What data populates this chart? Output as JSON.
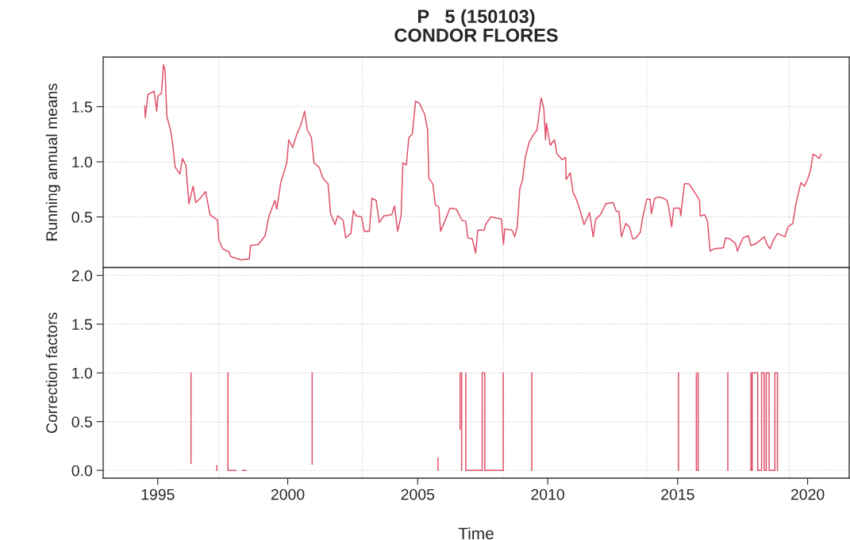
{
  "chart_data": [
    {
      "type": "line",
      "title": "P   5 (150103)",
      "subtitle": "CONDOR FLORES",
      "ylabel": "Running annual means",
      "xlim": [
        1992.9,
        2021.6
      ],
      "ylim": [
        0.04,
        1.95
      ],
      "yticks": [
        {
          "value": 0.5,
          "label": "0.5"
        },
        {
          "value": 1,
          "label": "1.0"
        },
        {
          "value": 1.5,
          "label": "1.5"
        }
      ],
      "tick_labels": "y",
      "grid": "y",
      "ref_lines": [
        {
          "axis": "x",
          "value": 1997.35,
          "color": "#d3d3d3",
          "line_style": "dotted"
        },
        {
          "axis": "x",
          "value": 2002.87,
          "color": "#d3d3d3",
          "line_style": "dotted"
        },
        {
          "axis": "x",
          "value": 2008.3,
          "color": "#d3d3d3",
          "line_style": "dotted"
        },
        {
          "axis": "x",
          "value": 2013.8,
          "color": "#d3d3d3",
          "line_style": "dotted"
        },
        {
          "axis": "x",
          "value": 2019.3,
          "color": "#d3d3d3",
          "line_style": "dotted"
        }
      ],
      "series": [
        {
          "color": "#df536b",
          "x": [
            1994.5,
            1994.52,
            1994.62,
            1994.86,
            1994.96,
            1995.01,
            1995.14,
            1995.22,
            1995.28,
            1995.35,
            1995.49,
            1995.57,
            1995.67,
            1995.85,
            1995.95,
            1996.08,
            1996.2,
            1996.36,
            1996.46,
            1996.64,
            1996.84,
            1997.01,
            1997.3,
            1997.35,
            1997.5,
            1997.75,
            1997.8,
            1998.21,
            1998.52,
            1998.57,
            1998.87,
            1999.13,
            1999.28,
            1999.51,
            1999.58,
            1999.73,
            1999.96,
            2000.04,
            2000.19,
            2000.35,
            2000.5,
            2000.65,
            2000.75,
            2000.91,
            2001.01,
            2001.21,
            2001.36,
            2001.55,
            2001.65,
            2001.82,
            2001.92,
            2002.13,
            2002.23,
            2002.43,
            2002.53,
            2002.63,
            2002.84,
            2002.94,
            2003.14,
            2003.24,
            2003.4,
            2003.52,
            2003.7,
            2004.0,
            2004.11,
            2004.23,
            2004.36,
            2004.43,
            2004.56,
            2004.66,
            2004.79,
            2004.92,
            2005.07,
            2005.27,
            2005.38,
            2005.43,
            2005.58,
            2005.68,
            2005.81,
            2005.88,
            2006.04,
            2006.24,
            2006.49,
            2006.7,
            2006.85,
            2006.93,
            2007.1,
            2007.23,
            2007.31,
            2007.56,
            2007.61,
            2007.81,
            2008.22,
            2008.3,
            2008.35,
            2008.63,
            2008.73,
            2008.83,
            2008.93,
            2009.03,
            2009.14,
            2009.29,
            2009.44,
            2009.59,
            2009.75,
            2009.85,
            2009.92,
            2009.95,
            2010.1,
            2010.26,
            2010.36,
            2010.56,
            2010.69,
            2010.71,
            2010.87,
            2010.97,
            2011.12,
            2011.27,
            2011.4,
            2011.61,
            2011.75,
            2011.85,
            2012.03,
            2012.24,
            2012.52,
            2012.64,
            2012.74,
            2012.84,
            2013.0,
            2013.15,
            2013.27,
            2013.4,
            2013.56,
            2013.66,
            2013.81,
            2013.94,
            2013.99,
            2014.12,
            2014.27,
            2014.45,
            2014.59,
            2014.66,
            2014.77,
            2014.85,
            2015.08,
            2015.12,
            2015.26,
            2015.43,
            2015.58,
            2015.74,
            2015.84,
            2015.87,
            2016.04,
            2016.15,
            2016.25,
            2016.4,
            2016.76,
            2016.84,
            2017.01,
            2017.22,
            2017.3,
            2017.4,
            2017.52,
            2017.72,
            2017.82,
            2018.03,
            2018.33,
            2018.44,
            2018.56,
            2018.66,
            2018.84,
            2019.13,
            2019.25,
            2019.43,
            2019.55,
            2019.74,
            2019.88,
            2019.98,
            2020.11,
            2020.21,
            2020.34,
            2020.45,
            2020.52
          ],
          "values": [
            1.51,
            1.4,
            1.61,
            1.64,
            1.46,
            1.6,
            1.62,
            1.88,
            1.83,
            1.41,
            1.29,
            1.17,
            0.95,
            0.89,
            1.03,
            0.97,
            0.62,
            0.78,
            0.63,
            0.67,
            0.73,
            0.52,
            0.47,
            0.29,
            0.21,
            0.18,
            0.14,
            0.11,
            0.12,
            0.24,
            0.25,
            0.33,
            0.51,
            0.65,
            0.57,
            0.81,
            0.99,
            1.2,
            1.13,
            1.25,
            1.33,
            1.46,
            1.29,
            1.22,
            0.99,
            0.95,
            0.85,
            0.8,
            0.53,
            0.43,
            0.51,
            0.47,
            0.31,
            0.35,
            0.56,
            0.51,
            0.5,
            0.37,
            0.37,
            0.67,
            0.65,
            0.45,
            0.51,
            0.52,
            0.6,
            0.37,
            0.51,
            0.99,
            0.97,
            1.22,
            1.25,
            1.55,
            1.53,
            1.43,
            1.29,
            0.85,
            0.8,
            0.61,
            0.59,
            0.37,
            0.46,
            0.58,
            0.57,
            0.47,
            0.46,
            0.31,
            0.3,
            0.17,
            0.38,
            0.38,
            0.43,
            0.5,
            0.48,
            0.25,
            0.39,
            0.38,
            0.32,
            0.41,
            0.76,
            0.83,
            1.04,
            1.18,
            1.24,
            1.29,
            1.58,
            1.49,
            1.2,
            1.35,
            1.15,
            1.2,
            1.07,
            1.02,
            1.04,
            0.84,
            0.9,
            0.73,
            0.65,
            0.54,
            0.43,
            0.54,
            0.32,
            0.48,
            0.52,
            0.62,
            0.63,
            0.55,
            0.55,
            0.32,
            0.44,
            0.41,
            0.3,
            0.31,
            0.36,
            0.5,
            0.66,
            0.66,
            0.53,
            0.67,
            0.68,
            0.67,
            0.65,
            0.58,
            0.41,
            0.58,
            0.58,
            0.51,
            0.8,
            0.8,
            0.75,
            0.69,
            0.65,
            0.51,
            0.52,
            0.46,
            0.19,
            0.21,
            0.22,
            0.31,
            0.3,
            0.26,
            0.19,
            0.25,
            0.31,
            0.33,
            0.24,
            0.26,
            0.32,
            0.25,
            0.21,
            0.28,
            0.35,
            0.32,
            0.41,
            0.44,
            0.62,
            0.81,
            0.78,
            0.83,
            0.92,
            1.07,
            1.05,
            1.03,
            1.07
          ]
        }
      ]
    },
    {
      "type": "line",
      "xlabel": "Time",
      "ylabel": "Correction factors",
      "xlim": [
        1992.9,
        2021.6
      ],
      "ylim": [
        -0.08,
        2.08
      ],
      "xticks": [
        1995,
        2000,
        2005,
        2010,
        2015,
        2020
      ],
      "yticks": [
        {
          "value": 0,
          "label": "0.0"
        },
        {
          "value": 0.5,
          "label": "0.5"
        },
        {
          "value": 1,
          "label": "1.0"
        },
        {
          "value": 1.5,
          "label": "1.5"
        },
        {
          "value": 2,
          "label": "2.0"
        }
      ],
      "grid": "y",
      "ref_lines": [
        {
          "axis": "x",
          "value": 1997.35,
          "color": "#d3d3d3",
          "line_style": "dotted"
        },
        {
          "axis": "x",
          "value": 2002.87,
          "color": "#d3d3d3",
          "line_style": "dotted"
        },
        {
          "axis": "x",
          "value": 2008.3,
          "color": "#d3d3d3",
          "line_style": "dotted"
        },
        {
          "axis": "x",
          "value": 2013.8,
          "color": "#d3d3d3",
          "line_style": "dotted"
        },
        {
          "axis": "x",
          "value": 2019.3,
          "color": "#d3d3d3",
          "line_style": "dotted"
        }
      ],
      "series": [
        {
          "color": "#df536b",
          "x": [
            1996.28,
            1996.28,
            1996.29,
            1997.27,
            1997.27,
            1997.28,
            1997.7,
            1997.7,
            1998.01,
            1998.02,
            1998.26,
            1998.41,
            1998.42,
            2000.94,
            2000.94,
            2000.95,
            2005.78,
            2005.78,
            2005.79,
            2006.63,
            2006.63,
            2006.66,
            2006.69,
            2006.69,
            2006.7,
            2006.85,
            2006.85,
            2007.48,
            2007.48,
            2007.58,
            2007.58,
            2008.29,
            2008.29,
            2008.3,
            2009.39,
            2009.39,
            2009.4,
            2015.03,
            2015.03,
            2015.04,
            2015.72,
            2015.72,
            2015.79,
            2015.79,
            2015.8,
            2016.93,
            2016.93,
            2016.94,
            2017.82,
            2017.82,
            2017.87,
            2017.87,
            2018.08,
            2018.08,
            2018.23,
            2018.23,
            2018.33,
            2018.33,
            2018.41,
            2018.41,
            2018.52,
            2018.52,
            2018.74,
            2018.74,
            2018.84,
            2018.84
          ],
          "values": [
            1.0,
            0.07,
            null,
            0.05,
            0.0,
            null,
            1.0,
            0.0,
            0.0,
            null,
            0.0,
            0.0,
            null,
            1.0,
            0.06,
            null,
            0.13,
            0.0,
            null,
            1.0,
            0.42,
            null,
            1.0,
            0.0,
            null,
            1.0,
            0.0,
            0.0,
            1.0,
            1.0,
            0.0,
            0.0,
            1.0,
            null,
            1.0,
            0.0,
            null,
            1.0,
            0.0,
            null,
            1.0,
            0.0,
            0.0,
            1.0,
            null,
            1.0,
            0.0,
            null,
            1.0,
            0.0,
            0.0,
            1.0,
            1.0,
            0.0,
            0.0,
            1.0,
            1.0,
            0.0,
            0.0,
            1.0,
            1.0,
            0.0,
            0.0,
            1.0,
            1.0,
            0.0
          ]
        }
      ]
    }
  ]
}
